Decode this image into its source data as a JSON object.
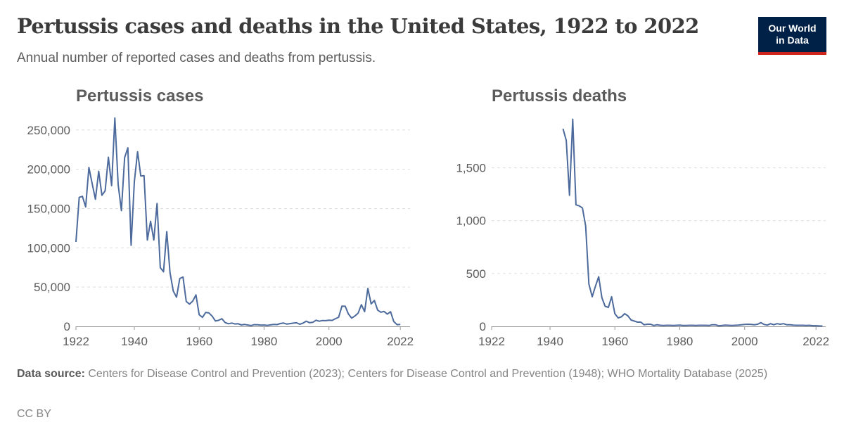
{
  "title": "Pertussis cases and deaths in the United States, 1922 to 2022",
  "subtitle": "Annual number of reported cases and deaths from pertussis.",
  "logo": {
    "line1": "Our World",
    "line2": "in Data",
    "bg_color": "#002147",
    "accent_color": "#ce261e"
  },
  "footer": {
    "source_label": "Data source:",
    "source_text": " Centers for Disease Control and Prevention (2023); Centers for Disease Control and Prevention (1948); WHO Mortality Database (2025)",
    "license": "CC BY"
  },
  "chart_data": [
    {
      "type": "line",
      "title": "Pertussis cases",
      "line_color": "#4c6a9c",
      "xlim": [
        1922,
        2025
      ],
      "ylim": [
        0,
        265000
      ],
      "x_ticks": [
        1922,
        1940,
        1960,
        1980,
        2000,
        2022
      ],
      "y_ticks": [
        0,
        50000,
        100000,
        150000,
        200000,
        250000
      ],
      "y_tick_labels": [
        "0",
        "50,000",
        "100,000",
        "150,000",
        "200,000",
        "250,000"
      ],
      "grid": "horizontal dashed",
      "series": [
        {
          "x": [
            1922,
            1923,
            1924,
            1925,
            1926,
            1927,
            1928,
            1929,
            1930,
            1931,
            1932,
            1933,
            1934,
            1935,
            1936,
            1937,
            1938,
            1939,
            1940,
            1941,
            1942,
            1943,
            1944,
            1945,
            1946,
            1947,
            1948,
            1949,
            1950,
            1951,
            1952,
            1953,
            1954,
            1955,
            1956,
            1957,
            1958,
            1959,
            1960,
            1961,
            1962,
            1963,
            1964,
            1965,
            1966,
            1967,
            1968,
            1969,
            1970,
            1971,
            1972,
            1973,
            1974,
            1975,
            1976,
            1977,
            1978,
            1979,
            1980,
            1981,
            1982,
            1983,
            1984,
            1985,
            1986,
            1987,
            1988,
            1989,
            1990,
            1991,
            1992,
            1993,
            1994,
            1995,
            1996,
            1997,
            1998,
            1999,
            2000,
            2001,
            2002,
            2003,
            2004,
            2005,
            2006,
            2007,
            2008,
            2009,
            2010,
            2011,
            2012,
            2013,
            2014,
            2015,
            2016,
            2017,
            2018,
            2019,
            2020,
            2021,
            2022
          ],
          "values": [
            107473,
            164191,
            165418,
            152003,
            202210,
            181411,
            161799,
            197371,
            166914,
            172559,
            215343,
            179135,
            265269,
            180518,
            147237,
            214652,
            227319,
            103188,
            183866,
            222202,
            191383,
            191890,
            109873,
            133792,
            109860,
            156517,
            74715,
            69479,
            120718,
            68687,
            45030,
            37129,
            60886,
            62786,
            31732,
            28295,
            32148,
            40005,
            14809,
            11468,
            17749,
            17135,
            13005,
            6799,
            7717,
            9718,
            4810,
            3285,
            4249,
            3036,
            3287,
            1759,
            2402,
            1738,
            1010,
            2177,
            2063,
            1623,
            1730,
            1248,
            1895,
            2463,
            2276,
            3589,
            4195,
            2823,
            3450,
            4157,
            4570,
            2719,
            4083,
            6586,
            4617,
            5137,
            7796,
            6564,
            7405,
            7288,
            7867,
            7580,
            9771,
            11647,
            25827,
            25616,
            15632,
            10454,
            13278,
            16858,
            27550,
            18719,
            48277,
            28639,
            32971,
            20762,
            17972,
            18975,
            15609,
            18617,
            6124,
            2116,
            2388
          ]
        }
      ]
    },
    {
      "type": "line",
      "title": "Pertussis deaths",
      "line_color": "#4c6a9c",
      "xlim": [
        1922,
        2025
      ],
      "ylim": [
        0,
        1970
      ],
      "x_ticks": [
        1922,
        1940,
        1960,
        1980,
        2000,
        2022
      ],
      "y_ticks": [
        0,
        500,
        1000,
        1500
      ],
      "y_tick_labels": [
        "0",
        "500",
        "1,000",
        "1,500"
      ],
      "grid": "horizontal dashed",
      "series": [
        {
          "x": [
            1944,
            1945,
            1946,
            1947,
            1948,
            1949,
            1950,
            1951,
            1952,
            1953,
            1954,
            1955,
            1956,
            1957,
            1958,
            1959,
            1960,
            1961,
            1962,
            1963,
            1964,
            1965,
            1966,
            1967,
            1968,
            1969,
            1970,
            1971,
            1972,
            1973,
            1974,
            1975,
            1976,
            1977,
            1978,
            1979,
            1980,
            1981,
            1982,
            1983,
            1984,
            1985,
            1986,
            1987,
            1988,
            1989,
            1990,
            1991,
            1992,
            1993,
            1994,
            1995,
            1996,
            1997,
            1998,
            1999,
            2000,
            2001,
            2002,
            2003,
            2004,
            2005,
            2006,
            2007,
            2008,
            2009,
            2010,
            2011,
            2012,
            2013,
            2014,
            2015,
            2016,
            2017,
            2018,
            2019,
            2020,
            2021,
            2022,
            2023,
            2024
          ],
          "values": [
            1870,
            1760,
            1240,
            1960,
            1150,
            1140,
            1120,
            950,
            400,
            280,
            380,
            470,
            270,
            190,
            180,
            280,
            120,
            80,
            90,
            120,
            100,
            60,
            50,
            40,
            40,
            15,
            20,
            20,
            8,
            15,
            10,
            8,
            10,
            10,
            8,
            10,
            12,
            8,
            8,
            10,
            10,
            8,
            10,
            10,
            10,
            8,
            15,
            15,
            5,
            8,
            12,
            10,
            8,
            10,
            12,
            15,
            18,
            20,
            18,
            15,
            20,
            35,
            18,
            12,
            25,
            15,
            25,
            20,
            25,
            15,
            15,
            12,
            10,
            10,
            10,
            8,
            10,
            6,
            6,
            4,
            3
          ]
        }
      ]
    }
  ]
}
